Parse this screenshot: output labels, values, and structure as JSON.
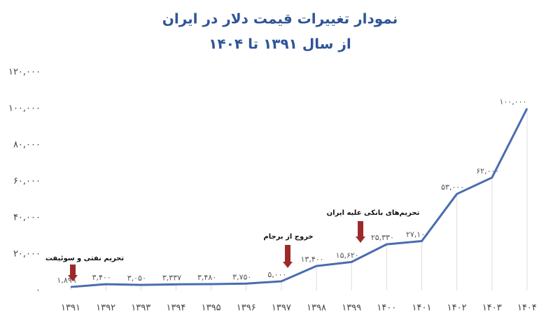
{
  "chart_data": {
    "type": "line",
    "title": "نمودار تغییرات قیمت دلار در ایران",
    "subtitle": "از سال ۱۳۹۱ تا ۱۴۰۴",
    "categories": [
      "۱۳۹۱",
      "۱۳۹۲",
      "۱۳۹۳",
      "۱۳۹۴",
      "۱۳۹۵",
      "۱۳۹۶",
      "۱۳۹۷",
      "۱۳۹۸",
      "۱۳۹۹",
      "۱۴۰۰",
      "۱۴۰۱",
      "۱۴۰۲",
      "۱۴۰۳",
      "۱۴۰۴"
    ],
    "series": [
      {
        "color": "#4a6cb0",
        "values": [
          1899,
          3400,
          3050,
          3337,
          3480,
          3750,
          5000,
          13400,
          15620,
          25330,
          27100,
          53000,
          62000,
          100000
        ],
        "value_labels": [
          "۱,۸۹۹",
          "۳,۴۰۰",
          "۳,۰۵۰",
          "۳,۳۳۷",
          "۳,۴۸۰",
          "۳,۷۵۰",
          "۵,۰۰۰",
          "۱۳,۴۰۰",
          "۱۵,۶۲۰",
          "۲۵,۳۳۰",
          "۲۷,۱۰۰",
          "۵۳,۰۰۰",
          "۶۲,۰۰۰",
          "۱۰۰,۰۰۰"
        ]
      }
    ],
    "ylim": [
      0,
      120000
    ],
    "yticks": [
      {
        "value": 0,
        "label": "۰"
      },
      {
        "value": 20000,
        "label": "۲۰,۰۰۰"
      },
      {
        "value": 40000,
        "label": "۴۰,۰۰۰"
      },
      {
        "value": 60000,
        "label": "۶۰,۰۰۰"
      },
      {
        "value": 80000,
        "label": "۸۰,۰۰۰"
      },
      {
        "value": 100000,
        "label": "۱۰۰,۰۰۰"
      },
      {
        "value": 120000,
        "label": "۱۲۰,۰۰۰"
      }
    ],
    "annotations": [
      "تحریم نفتی و سوئیفت",
      "خروج از برجام",
      "تحریم‌های بانکی علیه ایران"
    ]
  }
}
